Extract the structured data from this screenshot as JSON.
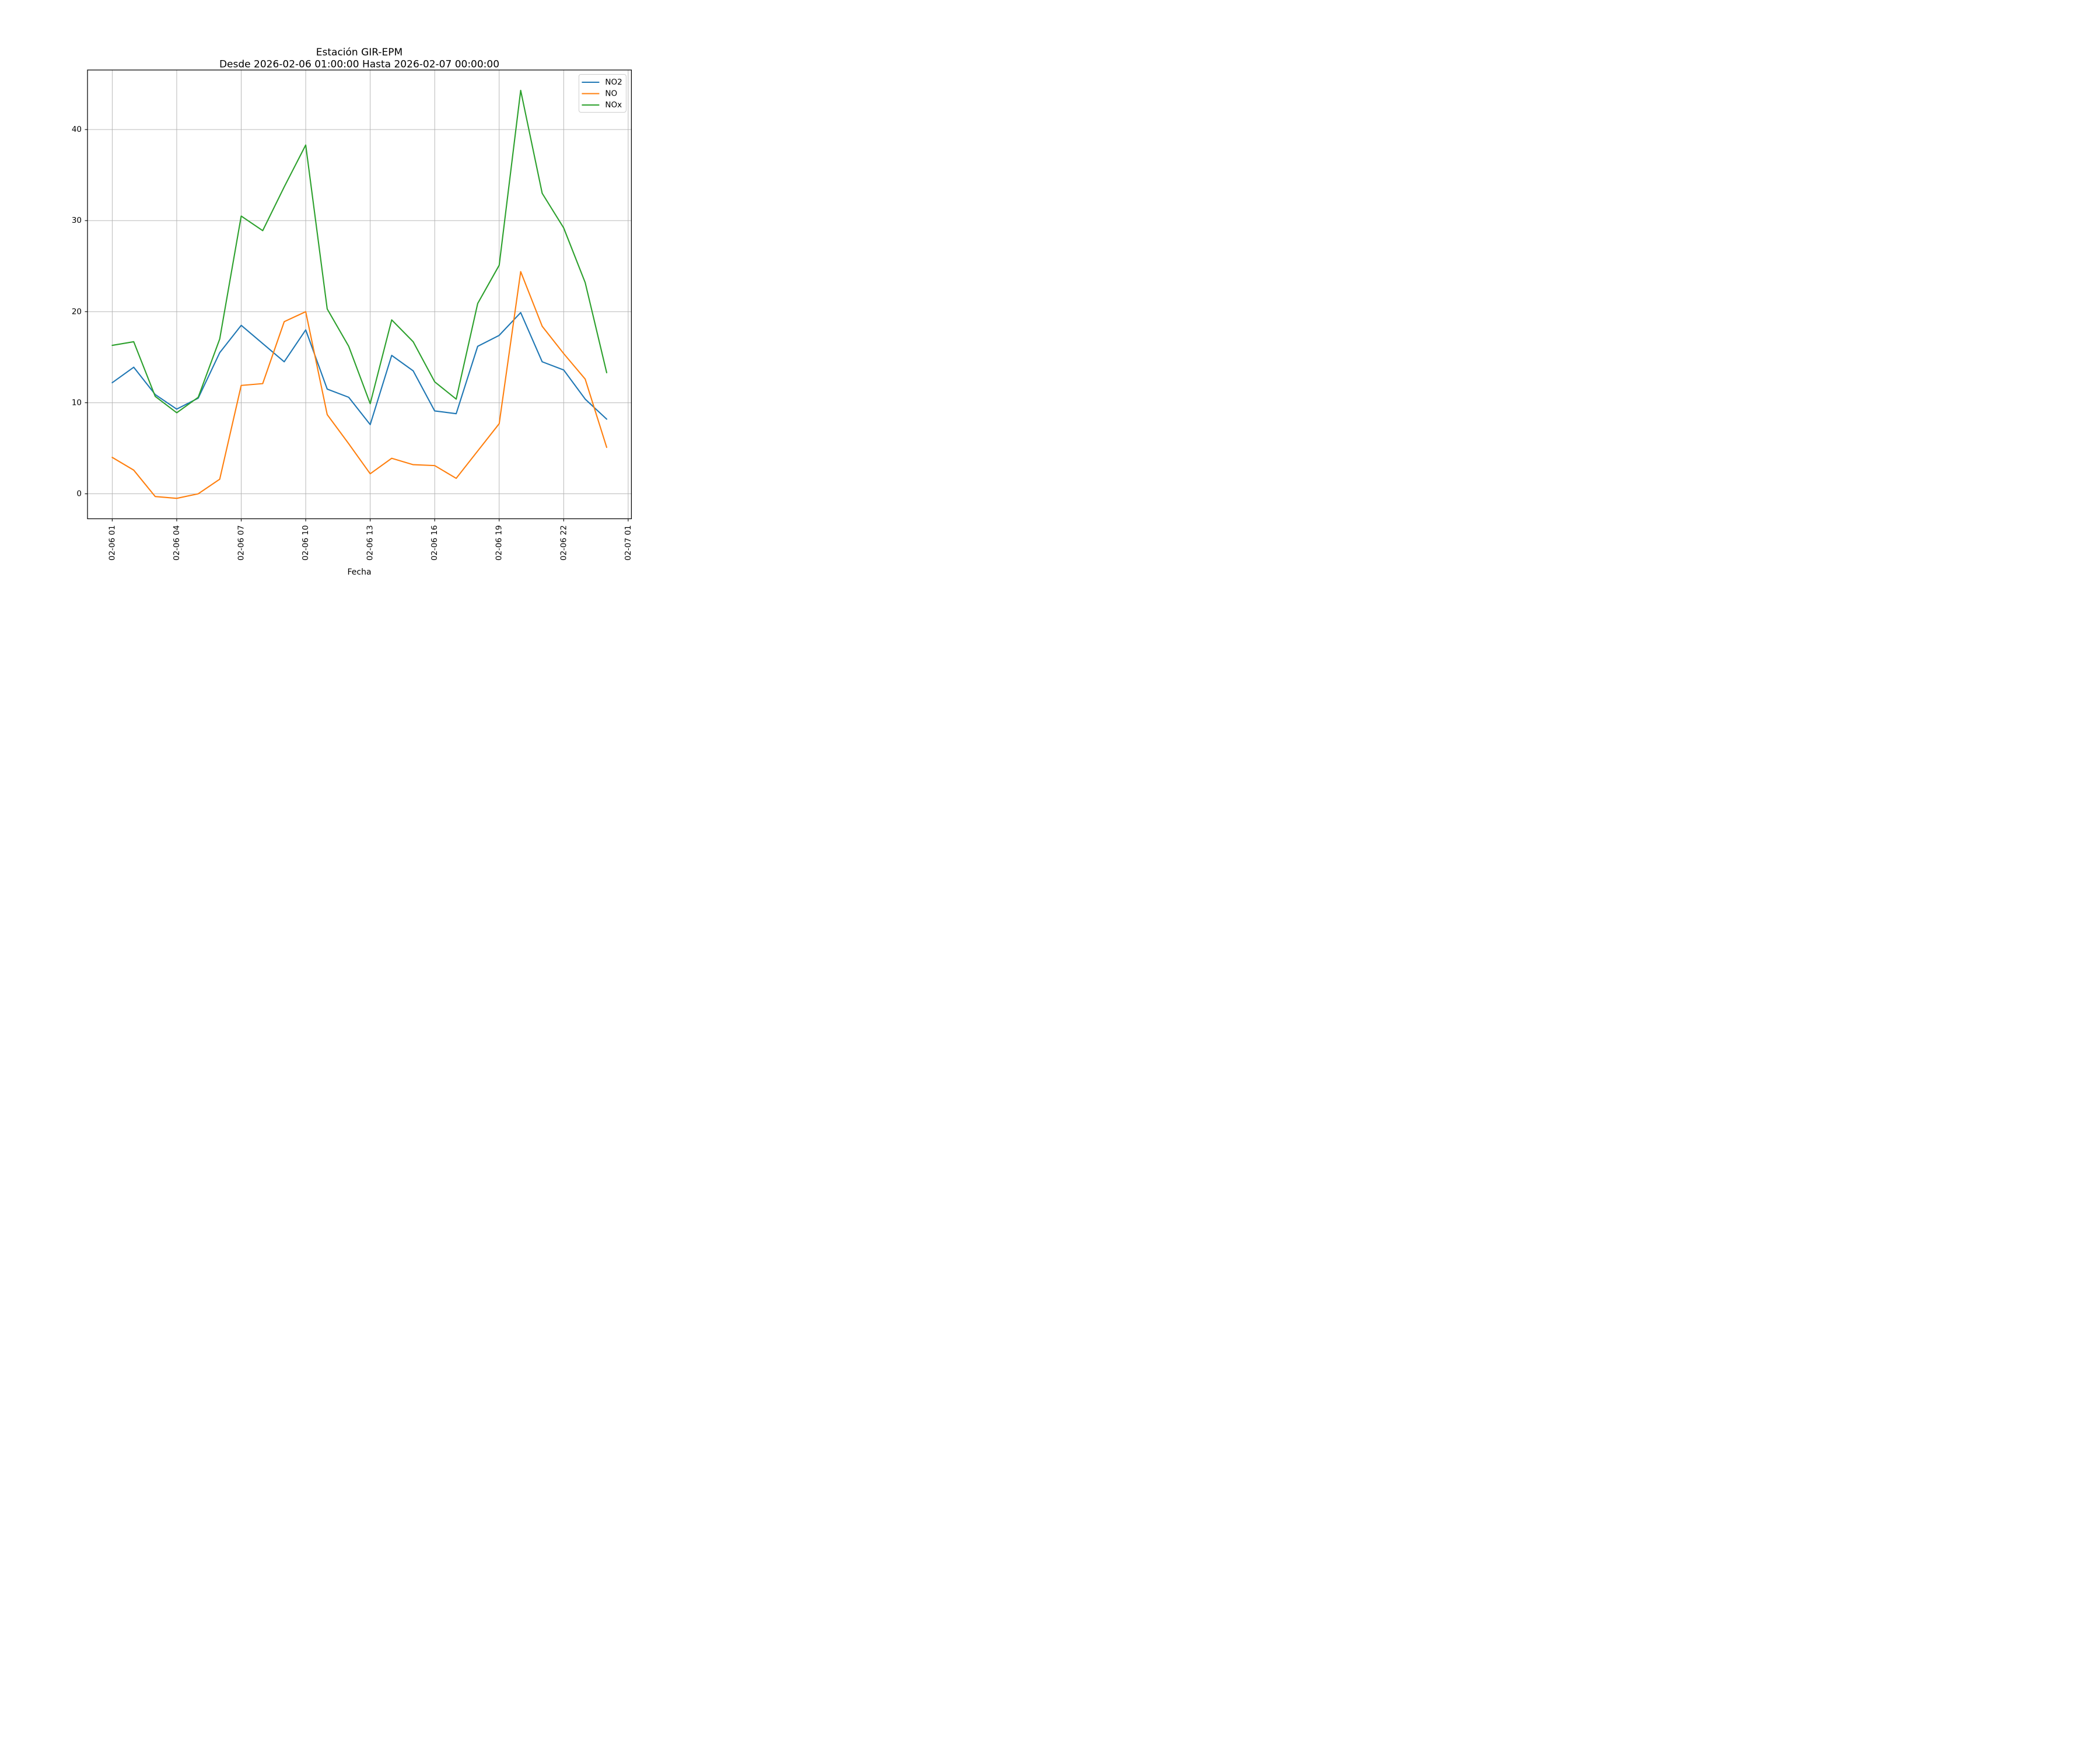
{
  "figure": {
    "background": "#ffffff"
  },
  "style": {
    "grid_color": "#b0b0b0",
    "spine_color": "#000000",
    "tick_color": "#000000",
    "text_color": "#000000",
    "legend_border_color": "#cccccc",
    "legend_background": "#ffffff"
  },
  "chart_data": {
    "type": "line",
    "title": "Estación GIR-EPM",
    "subtitle": "Desde 2026-02-06 01:00:00 Hasta 2026-02-07 00:00:00",
    "xlabel": "Fecha",
    "ylabel": "",
    "grid": true,
    "legend_position": "upper right",
    "x_hours": [
      1,
      2,
      3,
      4,
      5,
      6,
      7,
      8,
      9,
      10,
      11,
      12,
      13,
      14,
      15,
      16,
      17,
      18,
      19,
      20,
      21,
      22,
      23,
      24
    ],
    "x_tick_hours": [
      1,
      4,
      7,
      10,
      13,
      16,
      19,
      22,
      25
    ],
    "x_tick_labels": [
      "02-06 01",
      "02-06 04",
      "02-06 07",
      "02-06 10",
      "02-06 13",
      "02-06 16",
      "02-06 19",
      "02-06 22",
      "02-07 01"
    ],
    "y_ticks": [
      0,
      10,
      20,
      30,
      40
    ],
    "xlim": [
      -0.15,
      25.15
    ],
    "ylim": [
      -2.74,
      46.54
    ],
    "series": [
      {
        "name": "NO2",
        "color": "#1f77b4",
        "values": [
          12.2,
          13.9,
          10.9,
          9.3,
          10.5,
          15.5,
          18.5,
          16.5,
          14.5,
          18.0,
          11.5,
          10.6,
          7.6,
          15.2,
          13.5,
          9.1,
          8.8,
          16.2,
          17.4,
          19.9,
          14.5,
          13.6,
          10.4,
          8.2
        ]
      },
      {
        "name": "NO",
        "color": "#ff7f0e",
        "values": [
          4.0,
          2.6,
          -0.3,
          -0.5,
          0.0,
          1.6,
          11.9,
          12.1,
          18.9,
          20.0,
          8.7,
          5.5,
          2.2,
          3.9,
          3.2,
          3.1,
          1.7,
          4.7,
          7.7,
          24.4,
          18.4,
          15.4,
          12.6,
          5.1
        ]
      },
      {
        "name": "NOx",
        "color": "#2ca02c",
        "values": [
          16.3,
          16.7,
          10.7,
          8.9,
          10.6,
          17.0,
          30.5,
          28.9,
          33.7,
          38.3,
          20.3,
          16.2,
          9.9,
          19.1,
          16.7,
          12.3,
          10.4,
          20.9,
          25.1,
          44.3,
          33.0,
          29.2,
          23.2,
          13.3
        ]
      }
    ]
  }
}
